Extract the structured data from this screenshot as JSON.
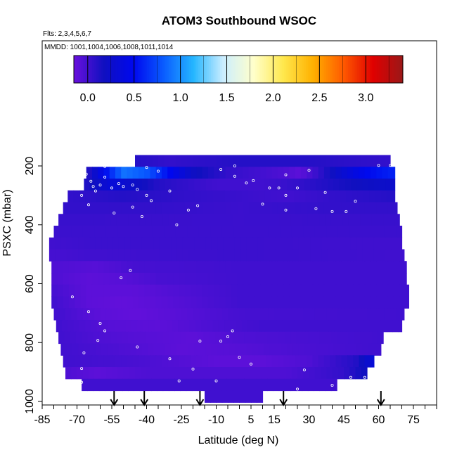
{
  "chart_data": {
    "type": "heatmap",
    "title": "ATOM3 Southbound WSOC",
    "subtitle_flights": "Flts: 2,3,4,5,6,7",
    "subtitle_dates": "MMDD: 1001,1004,1006,1008,1011,1014",
    "xlabel": "Latitude (deg N)",
    "ylabel": "PSXC (mbar)",
    "x_ticks": [
      "-85",
      "-70",
      "-55",
      "-40",
      "-25",
      "-10",
      "5",
      "15",
      "30",
      "45",
      "60",
      "75"
    ],
    "x_tick_values": [
      -85,
      -70,
      -55,
      -40,
      -25,
      -10,
      5,
      15,
      30,
      45,
      60,
      75
    ],
    "y_ticks": [
      "200",
      "400",
      "600",
      "800",
      "1000"
    ],
    "y_tick_values": [
      200,
      400,
      600,
      800,
      1000
    ],
    "xlim": [
      -85,
      85
    ],
    "ylim": [
      1000,
      0
    ],
    "y_reversed": true,
    "colorbar": {
      "ticks": [
        "0.0",
        "0.5",
        "1.0",
        "1.5",
        "2.0",
        "2.5",
        "3.0"
      ],
      "tick_values": [
        0.0,
        0.5,
        1.0,
        1.5,
        2.0,
        2.5,
        3.0
      ],
      "range": [
        -0.15,
        3.4
      ],
      "colors": [
        "#6a10dd",
        "#1010c0",
        "#0008ee",
        "#0a5cff",
        "#25b6ff",
        "#cceeff",
        "#ffffcc",
        "#ffe84d",
        "#ffb000",
        "#ff5a00",
        "#e00000",
        "#9a1818"
      ]
    },
    "profile_markers_lat": [
      -54,
      -41,
      -17,
      19,
      61
    ],
    "rows": [
      {
        "p": 183,
        "start": -45,
        "end": 65,
        "profile": [
          [
            -45,
            0.1
          ],
          [
            -30,
            0.05
          ],
          [
            0,
            0.1
          ],
          [
            30,
            0.1
          ],
          [
            65,
            0.05
          ]
        ]
      },
      {
        "p": 223,
        "start": -66,
        "end": 67,
        "profile": [
          [
            -66,
            0.05
          ],
          [
            -58,
            0.5
          ],
          [
            -50,
            0.9
          ],
          [
            -40,
            0.8
          ],
          [
            -30,
            0.5
          ],
          [
            -20,
            0.2
          ],
          [
            -5,
            0.05
          ],
          [
            20,
            -0.05
          ],
          [
            26,
            -0.1
          ],
          [
            32,
            0.0
          ],
          [
            45,
            0.3
          ],
          [
            55,
            0.5
          ],
          [
            67,
            0.6
          ]
        ]
      },
      {
        "p": 263,
        "start": -67,
        "end": 67,
        "profile": [
          [
            -67,
            0.1
          ],
          [
            -55,
            0.35
          ],
          [
            -48,
            0.25
          ],
          [
            -35,
            0.1
          ],
          [
            -10,
            0.0
          ],
          [
            10,
            0.0
          ],
          [
            25,
            0.05
          ],
          [
            45,
            0.15
          ],
          [
            67,
            0.25
          ]
        ]
      },
      {
        "p": 303,
        "start": -74,
        "end": 67,
        "profile": [
          [
            -74,
            0.05
          ],
          [
            -50,
            0.1
          ],
          [
            -20,
            0.05
          ],
          [
            20,
            0.0
          ],
          [
            40,
            0.05
          ],
          [
            67,
            0.1
          ]
        ]
      },
      {
        "p": 343,
        "start": -76,
        "end": 68,
        "profile": [
          [
            -76,
            0.05
          ],
          [
            -40,
            0.05
          ],
          [
            0,
            0.02
          ],
          [
            40,
            0.05
          ],
          [
            68,
            0.05
          ]
        ]
      },
      {
        "p": 383,
        "start": -78,
        "end": 69,
        "profile": [
          [
            -78,
            0.03
          ],
          [
            0,
            0.02
          ],
          [
            69,
            0.03
          ]
        ]
      },
      {
        "p": 423,
        "start": -80,
        "end": 70,
        "profile": [
          [
            -80,
            0.02
          ],
          [
            0,
            0.02
          ],
          [
            70,
            0.02
          ]
        ]
      },
      {
        "p": 463,
        "start": -82,
        "end": 70,
        "profile": [
          [
            -82,
            0.0
          ],
          [
            -60,
            0.02
          ],
          [
            0,
            0.02
          ],
          [
            70,
            0.0
          ]
        ]
      },
      {
        "p": 503,
        "start": -82,
        "end": 71,
        "profile": [
          [
            -82,
            -0.02
          ],
          [
            -65,
            0.0
          ],
          [
            0,
            0.02
          ],
          [
            71,
            0.0
          ]
        ]
      },
      {
        "p": 543,
        "start": -81,
        "end": 72,
        "profile": [
          [
            -81,
            -0.05
          ],
          [
            -62,
            -0.08
          ],
          [
            -45,
            -0.02
          ],
          [
            0,
            0.0
          ],
          [
            72,
            0.0
          ]
        ]
      },
      {
        "p": 583,
        "start": -81,
        "end": 72,
        "profile": [
          [
            -81,
            -0.05
          ],
          [
            -65,
            -0.1
          ],
          [
            -50,
            -0.08
          ],
          [
            -35,
            -0.03
          ],
          [
            0,
            0.0
          ],
          [
            72,
            0.0
          ]
        ]
      },
      {
        "p": 623,
        "start": -81,
        "end": 73,
        "profile": [
          [
            -81,
            -0.02
          ],
          [
            -65,
            -0.1
          ],
          [
            -45,
            -0.1
          ],
          [
            -25,
            -0.05
          ],
          [
            0,
            0.0
          ],
          [
            73,
            0.0
          ]
        ]
      },
      {
        "p": 663,
        "start": -81,
        "end": 73,
        "profile": [
          [
            -81,
            0.0
          ],
          [
            -65,
            -0.1
          ],
          [
            -50,
            -0.12
          ],
          [
            -30,
            -0.08
          ],
          [
            0,
            0.0
          ],
          [
            73,
            0.0
          ]
        ]
      },
      {
        "p": 703,
        "start": -80,
        "end": 71,
        "profile": [
          [
            -80,
            0.0
          ],
          [
            -60,
            -0.1
          ],
          [
            -45,
            -0.12
          ],
          [
            -25,
            -0.08
          ],
          [
            0,
            -0.02
          ],
          [
            71,
            0.0
          ]
        ]
      },
      {
        "p": 743,
        "start": -79,
        "end": 70,
        "profile": [
          [
            -79,
            0.0
          ],
          [
            -55,
            -0.08
          ],
          [
            -35,
            -0.1
          ],
          [
            -15,
            -0.05
          ],
          [
            10,
            0.0
          ],
          [
            70,
            0.0
          ]
        ]
      },
      {
        "p": 783,
        "start": -78,
        "end": 62,
        "profile": [
          [
            -78,
            0.0
          ],
          [
            -60,
            -0.05
          ],
          [
            -40,
            -0.08
          ],
          [
            -20,
            -0.1
          ],
          [
            0,
            -0.05
          ],
          [
            62,
            0.0
          ]
        ]
      },
      {
        "p": 823,
        "start": -77,
        "end": 61,
        "profile": [
          [
            -77,
            0.0
          ],
          [
            -50,
            -0.05
          ],
          [
            -25,
            -0.1
          ],
          [
            -5,
            -0.08
          ],
          [
            15,
            -0.05
          ],
          [
            61,
            0.0
          ]
        ]
      },
      {
        "p": 863,
        "start": -76,
        "end": 58,
        "profile": [
          [
            -76,
            0.0
          ],
          [
            -45,
            -0.03
          ],
          [
            -10,
            -0.1
          ],
          [
            10,
            -0.1
          ],
          [
            30,
            -0.05
          ],
          [
            50,
            0.1
          ],
          [
            58,
            0.35
          ]
        ]
      },
      {
        "p": 903,
        "start": -75,
        "end": 55,
        "profile": [
          [
            -75,
            -0.05
          ],
          [
            -62,
            -0.1
          ],
          [
            -40,
            -0.05
          ],
          [
            0,
            -0.05
          ],
          [
            20,
            -0.05
          ],
          [
            45,
            0.05
          ],
          [
            55,
            0.2
          ]
        ]
      },
      {
        "p": 943,
        "start": -68,
        "end": 42,
        "profile": [
          [
            -68,
            0.0
          ],
          [
            -30,
            0.0
          ],
          [
            0,
            0.0
          ],
          [
            42,
            0.0
          ]
        ]
      },
      {
        "p": 983,
        "start": -15,
        "end": 10,
        "profile": [
          [
            -15,
            0.0
          ],
          [
            10,
            0.0
          ]
        ]
      }
    ],
    "points": [
      [
        -58,
        202
      ],
      [
        -56,
        195
      ],
      [
        -66,
        228
      ],
      [
        -64,
        252
      ],
      [
        -63,
        270
      ],
      [
        -62,
        285
      ],
      [
        -60,
        265
      ],
      [
        -58,
        238
      ],
      [
        -55,
        275
      ],
      [
        -52,
        260
      ],
      [
        -50,
        270
      ],
      [
        -46,
        265
      ],
      [
        -44,
        280
      ],
      [
        -40,
        300
      ],
      [
        -38,
        318
      ],
      [
        -30,
        285
      ],
      [
        -22,
        350
      ],
      [
        -18,
        335
      ],
      [
        -27,
        400
      ],
      [
        -42,
        372
      ],
      [
        -46,
        340
      ],
      [
        -54,
        360
      ],
      [
        -68,
        300
      ],
      [
        -65,
        332
      ],
      [
        -51,
        580
      ],
      [
        -47,
        555
      ],
      [
        -72,
        645
      ],
      [
        -65,
        695
      ],
      [
        -60,
        735
      ],
      [
        -61,
        793
      ],
      [
        -58,
        760
      ],
      [
        -44,
        815
      ],
      [
        -30,
        855
      ],
      [
        -26,
        930
      ],
      [
        -20,
        890
      ],
      [
        -10,
        930
      ],
      [
        -8,
        795
      ],
      [
        -3,
        760
      ],
      [
        -2,
        200
      ],
      [
        -2,
        235
      ],
      [
        3,
        258
      ],
      [
        6,
        250
      ],
      [
        10,
        330
      ],
      [
        13,
        275
      ],
      [
        17,
        275
      ],
      [
        20,
        350
      ],
      [
        20,
        300
      ],
      [
        25,
        275
      ],
      [
        30,
        215
      ],
      [
        33,
        345
      ],
      [
        37,
        290
      ],
      [
        40,
        355
      ],
      [
        46,
        355
      ],
      [
        50,
        320
      ],
      [
        60,
        198
      ],
      [
        65,
        198
      ],
      [
        75,
        688
      ],
      [
        75,
        613
      ],
      [
        54,
        918
      ],
      [
        28,
        893
      ],
      [
        5,
        873
      ],
      [
        0,
        850
      ],
      [
        -5,
        780
      ],
      [
        -17,
        795
      ],
      [
        -67,
        835
      ],
      [
        -68,
        888
      ],
      [
        -68,
        935
      ],
      [
        -69,
        960
      ],
      [
        -69,
        950
      ],
      [
        25,
        958
      ],
      [
        40,
        945
      ],
      [
        48,
        918
      ],
      [
        45,
        948
      ],
      [
        -40,
        205
      ],
      [
        -35,
        218
      ],
      [
        -8,
        212
      ],
      [
        20,
        230
      ]
    ]
  }
}
